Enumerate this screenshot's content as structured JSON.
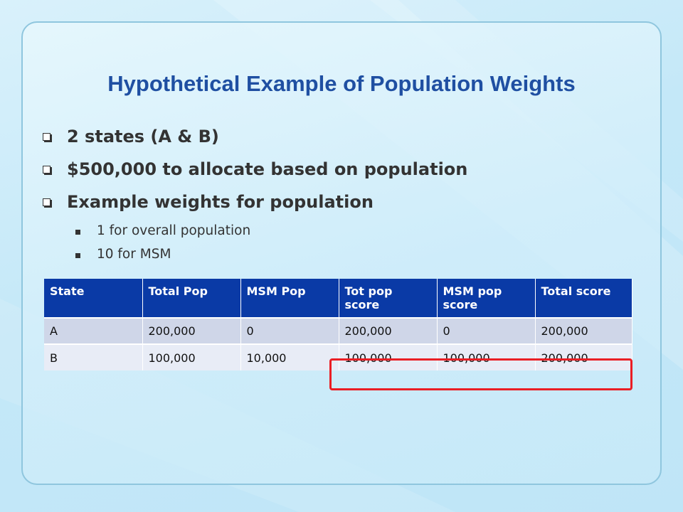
{
  "slide": {
    "title": "Hypothetical Example of Population Weights",
    "bullets": [
      {
        "text": "2 states (A & B)"
      },
      {
        "text": "$500,000 to allocate based on population"
      },
      {
        "text": "Example weights for population"
      }
    ],
    "sub_bullets": [
      {
        "text": "1 for overall population"
      },
      {
        "text": "10 for MSM"
      }
    ],
    "table": {
      "headers": [
        "State",
        "Total Pop",
        "MSM Pop",
        "Tot pop score",
        "MSM pop score",
        "Total score"
      ],
      "rows": [
        [
          "A",
          "200,000",
          "0",
          "200,000",
          "0",
          "200,000"
        ],
        [
          "B",
          "100,000",
          "10,000",
          "100,000",
          "100,000",
          "200,000"
        ]
      ]
    },
    "colors": {
      "title": "#1f4fa2",
      "table_header": "#0a3aa6",
      "highlight": "#ea1e24"
    }
  }
}
